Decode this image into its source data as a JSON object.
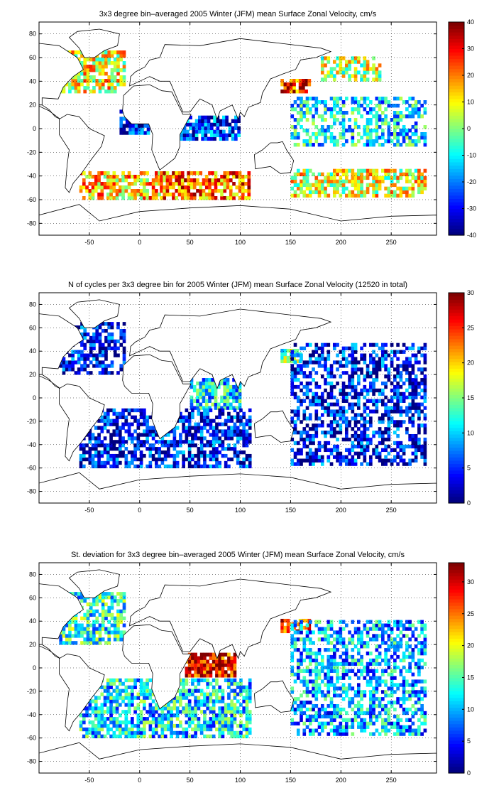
{
  "chart_data": [
    {
      "type": "heatmap",
      "title": "3x3 degree bin–averaged 2005 Winter (JFM) mean Surface Zonal Velocity, cm/s",
      "xlim": [
        -100,
        295
      ],
      "ylim": [
        -90,
        90
      ],
      "xticks": [
        -50,
        0,
        50,
        100,
        150,
        200,
        250
      ],
      "yticks": [
        80,
        60,
        40,
        20,
        0,
        -20,
        -40,
        -60,
        -80
      ],
      "colorbar": {
        "min": -40,
        "max": 40,
        "ticks": [
          40,
          30,
          20,
          10,
          0,
          -10,
          -20,
          -30,
          -40
        ],
        "colormap": "jet"
      },
      "grid": true,
      "bin_size_deg": 3,
      "regions": [
        {
          "lon": [
            -80,
            -15
          ],
          "lat": [
            30,
            65
          ],
          "level": 0.62,
          "density": 0.75
        },
        {
          "lon": [
            -20,
            10
          ],
          "lat": [
            -5,
            15
          ],
          "level": 0.15,
          "density": 0.8
        },
        {
          "lon": [
            -60,
            20
          ],
          "lat": [
            -60,
            -38
          ],
          "level": 0.68,
          "density": 0.7
        },
        {
          "lon": [
            20,
            110
          ],
          "lat": [
            -60,
            -38
          ],
          "level": 0.78,
          "density": 0.75
        },
        {
          "lon": [
            40,
            100
          ],
          "lat": [
            -10,
            10
          ],
          "level": 0.18,
          "density": 0.8
        },
        {
          "lon": [
            140,
            170
          ],
          "lat": [
            30,
            40
          ],
          "level": 0.85,
          "density": 0.8
        },
        {
          "lon": [
            150,
            285
          ],
          "lat": [
            -58,
            -35
          ],
          "level": 0.6,
          "density": 0.7
        },
        {
          "lon": [
            150,
            285
          ],
          "lat": [
            -15,
            25
          ],
          "level": 0.35,
          "density": 0.55
        },
        {
          "lon": [
            180,
            240
          ],
          "lat": [
            40,
            60
          ],
          "level": 0.55,
          "density": 0.6
        }
      ]
    },
    {
      "type": "heatmap",
      "title": "N of cycles per 3x3 degree bin for 2005 Winter (JFM) mean Surface Zonal Velocity (12520 in total)",
      "xlim": [
        -100,
        295
      ],
      "ylim": [
        -90,
        90
      ],
      "xticks": [
        -50,
        0,
        50,
        100,
        150,
        200,
        250
      ],
      "yticks": [
        80,
        60,
        40,
        20,
        0,
        -20,
        -40,
        -60,
        -80
      ],
      "colorbar": {
        "min": 0,
        "max": 30,
        "ticks": [
          30,
          25,
          20,
          15,
          10,
          5,
          0
        ],
        "colormap": "jet"
      },
      "grid": true,
      "bin_size_deg": 3,
      "regions": [
        {
          "lon": [
            -80,
            -15
          ],
          "lat": [
            20,
            65
          ],
          "level": 0.12,
          "density": 0.6
        },
        {
          "lon": [
            50,
            100
          ],
          "lat": [
            -10,
            15
          ],
          "level": 0.35,
          "density": 0.8
        },
        {
          "lon": [
            140,
            160
          ],
          "lat": [
            30,
            40
          ],
          "level": 0.5,
          "density": 0.8
        },
        {
          "lon": [
            150,
            285
          ],
          "lat": [
            -58,
            45
          ],
          "level": 0.12,
          "density": 0.55
        },
        {
          "lon": [
            -60,
            110
          ],
          "lat": [
            -60,
            -10
          ],
          "level": 0.12,
          "density": 0.65
        }
      ]
    },
    {
      "type": "heatmap",
      "title": "St. deviation for 3x3 degree bin–averaged 2005 Winter (JFM) mean Surface Zonal Velocity, cm/s",
      "xlim": [
        -100,
        295
      ],
      "ylim": [
        -90,
        90
      ],
      "xticks": [
        -50,
        0,
        50,
        100,
        150,
        200,
        250
      ],
      "yticks": [
        80,
        60,
        40,
        20,
        0,
        -20,
        -40,
        -60,
        -80
      ],
      "colorbar": {
        "min": 0,
        "max": 33,
        "ticks": [
          30,
          25,
          20,
          15,
          10,
          5,
          0
        ],
        "colormap": "jet"
      },
      "grid": true,
      "bin_size_deg": 3,
      "regions": [
        {
          "lon": [
            -80,
            -15
          ],
          "lat": [
            20,
            65
          ],
          "level": 0.4,
          "density": 0.7
        },
        {
          "lon": [
            45,
            95
          ],
          "lat": [
            -8,
            12
          ],
          "level": 0.9,
          "density": 0.85
        },
        {
          "lon": [
            140,
            170
          ],
          "lat": [
            30,
            40
          ],
          "level": 0.85,
          "density": 0.8
        },
        {
          "lon": [
            150,
            285
          ],
          "lat": [
            -58,
            40
          ],
          "level": 0.3,
          "density": 0.55
        },
        {
          "lon": [
            -60,
            110
          ],
          "lat": [
            -60,
            -10
          ],
          "level": 0.35,
          "density": 0.7
        }
      ]
    }
  ]
}
